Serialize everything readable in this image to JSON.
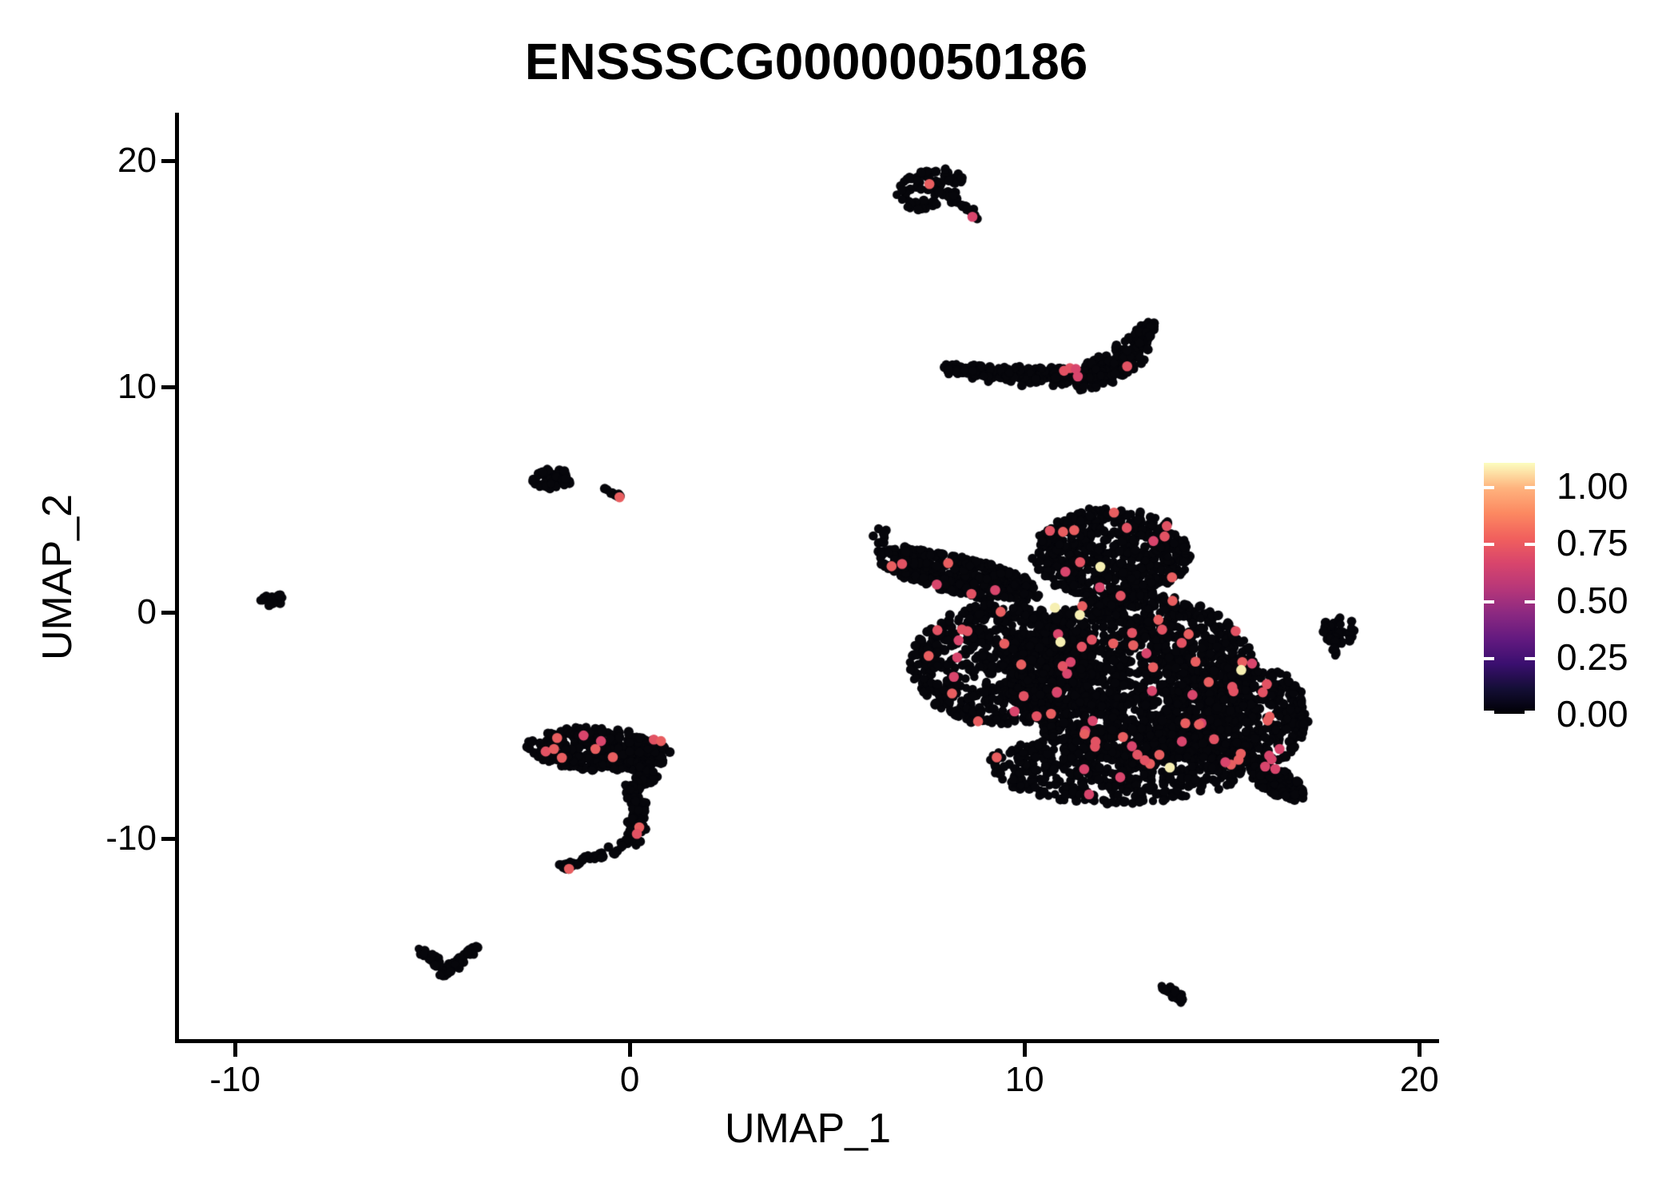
{
  "chart_data": {
    "type": "scatter",
    "title": "ENSSSCG00000050186",
    "xlabel": "UMAP_1",
    "ylabel": "UMAP_2",
    "xlim": [
      -11.46,
      20.4
    ],
    "ylim": [
      -18.97,
      22.06
    ],
    "grid": false,
    "x_tick_values": [
      -10,
      0,
      10,
      20
    ],
    "x_tick_labels": [
      "-10",
      "0",
      "10",
      "20"
    ],
    "y_tick_values": [
      -10,
      0,
      10,
      20
    ],
    "y_tick_labels": [
      "-10",
      "0",
      "10",
      "20"
    ],
    "seed": 42,
    "point_radius_px": 5.1,
    "highlight_radius_px": 6.3,
    "colors": {
      "zero_expression": "#06060b",
      "mid_expression": [
        "#d8456c",
        "#e25263",
        "#e85e60"
      ],
      "high_expression": "#f6efb2",
      "axis": "#000000",
      "background": "#ffffff"
    },
    "colorbar": {
      "position": "right",
      "tick_labels": [
        "1.00",
        "0.75",
        "0.50",
        "0.25",
        "0.00"
      ],
      "tick_values": [
        1.0,
        0.75,
        0.5,
        0.25,
        0.0
      ],
      "scale_max": 1.102,
      "colormap": "magma",
      "gradient": [
        [
          "0",
          "#000004"
        ],
        [
          "0.10",
          "#140e36"
        ],
        [
          "0.20",
          "#3b0f70"
        ],
        [
          "0.30",
          "#641a80"
        ],
        [
          "0.40",
          "#8c2981"
        ],
        [
          "0.50",
          "#b73779"
        ],
        [
          "0.60",
          "#d8456c"
        ],
        [
          "0.70",
          "#f1605d"
        ],
        [
          "0.80",
          "#fc8961"
        ],
        [
          "0.90",
          "#feb37e"
        ],
        [
          "1.0",
          "#fcfdbf"
        ]
      ]
    },
    "clusters": [
      {
        "name": "top-comet",
        "blobs": [
          {
            "cx": 7.6,
            "cy": 18.75,
            "rx": 0.8,
            "ry": 1.0,
            "rot": -35,
            "n": 78
          }
        ],
        "paths": [
          {
            "pts": [
              [
                8.1,
                18.55
              ],
              [
                8.45,
                18.0
              ],
              [
                8.79,
                17.5
              ]
            ],
            "th": 0.22,
            "n": 22
          }
        ],
        "highlights": [
          [
            7.59,
            18.97
          ],
          [
            8.68,
            17.52
          ]
        ],
        "highlight_n": 0
      },
      {
        "name": "crescent",
        "blobs": [],
        "paths": [
          {
            "pts": [
              [
                7.95,
                10.75
              ],
              [
                9.3,
                10.6
              ],
              [
                10.5,
                10.45
              ],
              [
                11.6,
                10.4
              ],
              [
                12.35,
                10.9
              ],
              [
                12.95,
                12.0
              ],
              [
                13.2,
                12.75
              ]
            ],
            "th": [
              0.28,
              0.45,
              0.62,
              0.72,
              0.8,
              0.55,
              0.28
            ],
            "n": 520
          }
        ],
        "highlights": [
          [
            11.0,
            10.7
          ],
          [
            11.15,
            10.82
          ],
          [
            11.3,
            10.78
          ],
          [
            11.35,
            10.45
          ],
          [
            12.6,
            10.9
          ]
        ],
        "highlight_n": 0
      },
      {
        "name": "small-left",
        "blobs": [
          {
            "cx": -1.95,
            "cy": 5.9,
            "rx": 0.58,
            "ry": 0.45,
            "rot": -15,
            "n": 62
          },
          {
            "cx": -0.65,
            "cy": 5.42,
            "rx": 0.08,
            "ry": 0.1,
            "rot": 0,
            "n": 2
          }
        ],
        "paths": [
          {
            "pts": [
              [
                -0.5,
                5.33
              ],
              [
                -0.15,
                5.05
              ]
            ],
            "th": 0.16,
            "n": 9
          }
        ],
        "highlights": [
          [
            -0.26,
            5.1
          ]
        ],
        "highlight_n": 0
      },
      {
        "name": "far-left-tiny",
        "blobs": [
          {
            "cx": -9.05,
            "cy": 0.55,
            "rx": 0.3,
            "ry": 0.33,
            "rot": 30,
            "n": 22
          }
        ],
        "paths": [],
        "highlights": [],
        "highlight_n": 0
      },
      {
        "name": "right-small",
        "blobs": [
          {
            "cx": 17.95,
            "cy": -0.8,
            "rx": 0.45,
            "ry": 0.62,
            "rot": 0,
            "n": 40
          }
        ],
        "paths": [
          {
            "pts": [
              [
                17.9,
                -1.3
              ],
              [
                17.85,
                -1.85
              ]
            ],
            "th": 0.13,
            "n": 8
          }
        ],
        "highlights": [],
        "highlight_n": 0
      },
      {
        "name": "bottom-left-v",
        "blobs": [],
        "paths": [
          {
            "pts": [
              [
                -5.28,
                -15.0
              ],
              [
                -4.9,
                -15.35
              ],
              [
                -4.66,
                -16.0
              ],
              [
                -4.3,
                -15.4
              ],
              [
                -3.97,
                -14.9
              ]
            ],
            "th": 0.3,
            "n": 72
          }
        ],
        "highlights": [],
        "highlight_n": 0
      },
      {
        "name": "bottom-right-streak",
        "blobs": [],
        "paths": [
          {
            "pts": [
              [
                13.5,
                -16.5
              ],
              [
                13.75,
                -16.8
              ],
              [
                14.0,
                -17.25
              ]
            ],
            "th": 0.2,
            "n": 28
          }
        ],
        "highlights": [],
        "highlight_n": 0
      },
      {
        "name": "seahorse",
        "blobs": [
          {
            "cx": -0.77,
            "cy": -6.07,
            "rx": 1.85,
            "ry": 0.95,
            "rot": -8,
            "n": 340
          },
          {
            "cx": 0.38,
            "cy": -7.25,
            "rx": 0.3,
            "ry": 0.5,
            "rot": 0,
            "n": 42
          }
        ],
        "paths": [
          {
            "pts": [
              [
                -0.02,
                -7.6
              ],
              [
                0.24,
                -8.6
              ],
              [
                0.18,
                -9.6
              ],
              [
                -0.02,
                -10.2
              ]
            ],
            "th": 0.38,
            "n": 95
          },
          {
            "pts": [
              [
                -0.16,
                -10.4
              ],
              [
                -0.77,
                -10.8
              ],
              [
                -1.38,
                -11.1
              ],
              [
                -1.68,
                -11.3
              ]
            ],
            "th": 0.24,
            "n": 48
          }
        ],
        "highlights": [
          [
            -1.84,
            -5.56
          ],
          [
            -2.13,
            -6.16
          ],
          [
            -1.92,
            -6.05
          ],
          [
            -1.72,
            -6.44
          ],
          [
            -1.17,
            -5.45
          ],
          [
            -0.73,
            -5.7
          ],
          [
            -0.87,
            -6.05
          ],
          [
            -0.43,
            -6.41
          ],
          [
            0.61,
            -5.63
          ],
          [
            0.79,
            -5.7
          ],
          [
            0.24,
            -9.52
          ],
          [
            0.18,
            -9.81
          ],
          [
            -1.54,
            -11.36
          ]
        ],
        "highlight_n": 0
      },
      {
        "name": "main-mass",
        "blobs": [
          {
            "cx": 12.2,
            "cy": 2.6,
            "rx": 2.0,
            "ry": 2.0,
            "rot": 0,
            "n": 560
          },
          {
            "cx": 8.3,
            "cy": 1.7,
            "rx": 2.3,
            "ry": 0.8,
            "rot": -24,
            "n": 400
          },
          {
            "cx": 9.4,
            "cy": -2.3,
            "rx": 2.3,
            "ry": 2.7,
            "rot": 0,
            "n": 720
          },
          {
            "cx": 12.8,
            "cy": -2.9,
            "rx": 3.1,
            "ry": 3.8,
            "rot": 0,
            "n": 1500
          },
          {
            "cx": 15.5,
            "cy": -4.6,
            "rx": 1.7,
            "ry": 2.4,
            "rot": 0,
            "n": 460
          },
          {
            "cx": 12.4,
            "cy": -6.8,
            "rx": 3.3,
            "ry": 1.7,
            "rot": 0,
            "n": 560
          },
          {
            "cx": 16.4,
            "cy": -7.5,
            "rx": 1.0,
            "ry": 0.45,
            "rot": -53,
            "n": 130
          },
          {
            "cx": 6.5,
            "cy": 3.4,
            "rx": 0.35,
            "ry": 0.4,
            "rot": 0,
            "n": 8
          },
          {
            "cx": 11.7,
            "cy": 4.55,
            "rx": 0.3,
            "ry": 0.3,
            "rot": 0,
            "n": 6
          }
        ],
        "paths": [],
        "highlights": [],
        "highlight_n": 96
      }
    ],
    "high_expression_points": [
      [
        11.92,
        2.02
      ],
      [
        10.77,
        0.21
      ],
      [
        11.4,
        -0.11
      ],
      [
        10.91,
        -1.31
      ],
      [
        13.68,
        -6.87
      ],
      [
        15.49,
        -2.55
      ]
    ]
  }
}
